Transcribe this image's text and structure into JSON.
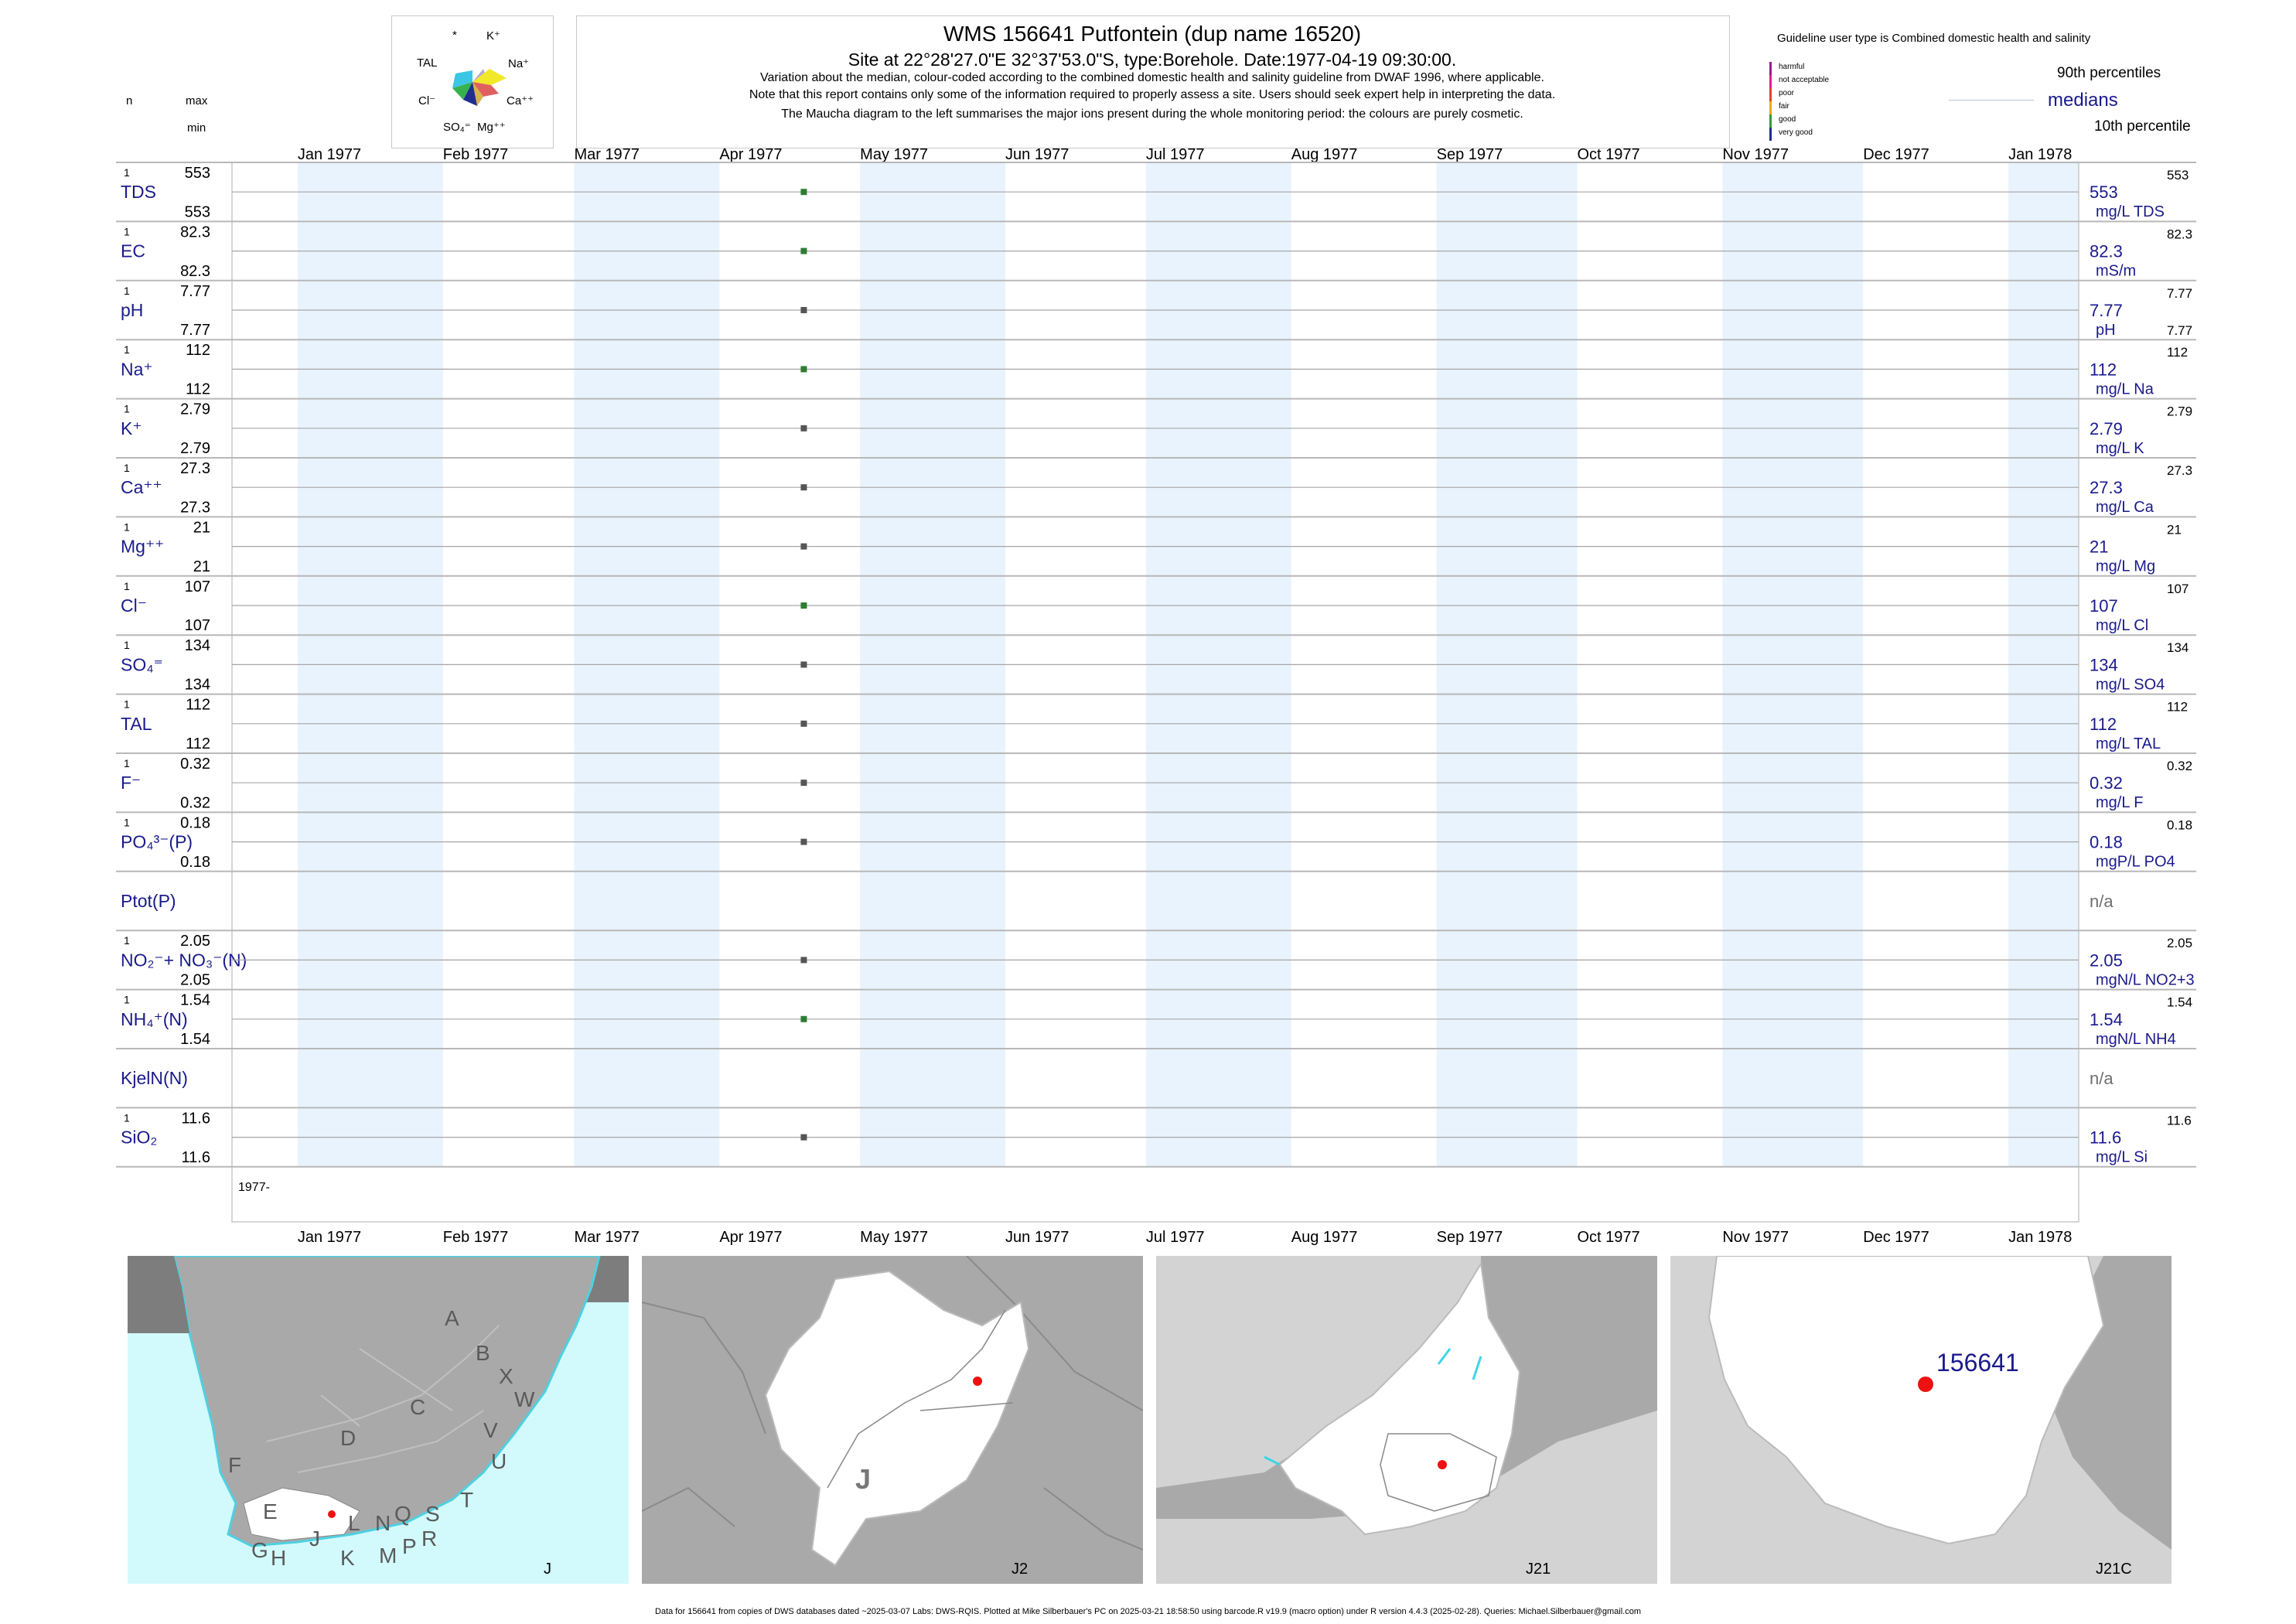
{
  "header": {
    "title": "WMS 156641  Putfontein (dup name 16520)",
    "site_line": "Site at 22°28'27.0\"E 32°37'53.0\"S, type:Borehole. Date:1977-04-19 09:30:00.",
    "note_1": "Variation about the median,  colour-coded according to the combined domestic health and salinity guideline from DWAF 1996, where applicable.",
    "note_2": "Note that this report contains only some of the information required to properly assess a site. Users should seek expert help in interpreting the data.",
    "note_3": "The Maucha diagram to the left summarises the major ions present during the whole monitoring period: the colours are purely cosmetic."
  },
  "maucha": {
    "labels": {
      "star": "*",
      "k": "K⁺",
      "tal": "TAL",
      "na": "Na⁺",
      "cl": "Cl⁻",
      "ca": "Ca⁺⁺",
      "so4": "SO₄⁼",
      "mg": "Mg⁺⁺"
    }
  },
  "left_header": {
    "n": "n",
    "max": "max",
    "min": "min"
  },
  "legend": {
    "guideline_title": "Guideline user type is Combined domestic health and salinity",
    "categories": [
      {
        "label": "harmful",
        "color": "#9b1d8a"
      },
      {
        "label": "not acceptable",
        "color": "#e0218a"
      },
      {
        "label": "poor",
        "color": "#e8402a"
      },
      {
        "label": "fair",
        "color": "#f2a900"
      },
      {
        "label": "good",
        "color": "#2e9e3a"
      },
      {
        "label": "very good",
        "color": "#1f2f8f"
      }
    ],
    "p90": "90th percentiles",
    "medians": "medians",
    "p10": "10th percentile"
  },
  "chart_data": {
    "type": "scatter",
    "x_axis": {
      "months": [
        "Jan 1977",
        "Feb 1977",
        "Mar 1977",
        "Apr 1977",
        "May 1977",
        "Jun 1977",
        "Jul 1977",
        "Aug 1977",
        "Sep 1977",
        "Oct 1977",
        "Nov 1977",
        "Dec 1977",
        "Jan 1978"
      ],
      "range": [
        "1976-12-18",
        "1978-01-16"
      ],
      "year_label": "1977-"
    },
    "sample_date": "1977-04-19",
    "series": [
      {
        "label": "TDS",
        "n": "1",
        "max": "553",
        "min": "553",
        "value": 553,
        "median": "553",
        "unit": "mg/L TDS",
        "p90": "553",
        "color": "#2e7d32"
      },
      {
        "label": "EC",
        "n": "1",
        "max": "82.3",
        "min": "82.3",
        "value": 82.3,
        "median": "82.3",
        "unit": "mS/m",
        "p90": "82.3",
        "color": "#2e7d32"
      },
      {
        "label": "pH",
        "n": "1",
        "max": "7.77",
        "min": "7.77",
        "value": 7.77,
        "median": "7.77",
        "unit": "pH",
        "p90": "7.77",
        "p10": "7.77",
        "color": "#555555"
      },
      {
        "label": "Na⁺",
        "n": "1",
        "max": "112",
        "min": "112",
        "value": 112,
        "median": "112",
        "unit": "mg/L Na",
        "p90": "112",
        "color": "#2e7d32"
      },
      {
        "label": "K⁺",
        "n": "1",
        "max": "2.79",
        "min": "2.79",
        "value": 2.79,
        "median": "2.79",
        "unit": "mg/L K",
        "p90": "2.79",
        "color": "#555555"
      },
      {
        "label": "Ca⁺⁺",
        "n": "1",
        "max": "27.3",
        "min": "27.3",
        "value": 27.3,
        "median": "27.3",
        "unit": "mg/L Ca",
        "p90": "27.3",
        "color": "#555555"
      },
      {
        "label": "Mg⁺⁺",
        "n": "1",
        "max": "21",
        "min": "21",
        "value": 21,
        "median": "21",
        "unit": "mg/L Mg",
        "p90": "21",
        "color": "#555555"
      },
      {
        "label": "Cl⁻",
        "n": "1",
        "max": "107",
        "min": "107",
        "value": 107,
        "median": "107",
        "unit": "mg/L Cl",
        "p90": "107",
        "color": "#2e7d32"
      },
      {
        "label": "SO₄⁼",
        "n": "1",
        "max": "134",
        "min": "134",
        "value": 134,
        "median": "134",
        "unit": "mg/L SO4",
        "p90": "134",
        "color": "#555555"
      },
      {
        "label": "TAL",
        "n": "1",
        "max": "112",
        "min": "112",
        "value": 112,
        "median": "112",
        "unit": "mg/L TAL",
        "p90": "112",
        "color": "#555555"
      },
      {
        "label": "F⁻",
        "n": "1",
        "max": "0.32",
        "min": "0.32",
        "value": 0.32,
        "median": "0.32",
        "unit": "mg/L F",
        "p90": "0.32",
        "color": "#555555"
      },
      {
        "label": "PO₄³⁻(P)",
        "n": "1",
        "max": "0.18",
        "min": "0.18",
        "value": 0.18,
        "median": "0.18",
        "unit": "mgP/L PO4",
        "p90": "0.18",
        "color": "#555555"
      },
      {
        "label": "Ptot(P)",
        "n": "",
        "max": "",
        "min": "",
        "value": null,
        "median": "n/a",
        "unit": "",
        "p90": "",
        "color": "#555555"
      },
      {
        "label": "NO₂⁻+ NO₃⁻(N)",
        "n": "1",
        "max": "2.05",
        "min": "2.05",
        "value": 2.05,
        "median": "2.05",
        "unit": "mgN/L NO2+3",
        "p90": "2.05",
        "color": "#555555"
      },
      {
        "label": "NH₄⁺(N)",
        "n": "1",
        "max": "1.54",
        "min": "1.54",
        "value": 1.54,
        "median": "1.54",
        "unit": "mgN/L NH4",
        "p90": "1.54",
        "color": "#2e7d32"
      },
      {
        "label": "KjelN(N)",
        "n": "",
        "max": "",
        "min": "",
        "value": null,
        "median": "n/a",
        "unit": "",
        "p90": "",
        "color": "#555555"
      },
      {
        "label": "SiO₂",
        "n": "1",
        "max": "11.6",
        "min": "11.6",
        "value": 11.6,
        "median": "11.6",
        "unit": "mg/L Si",
        "p90": "11.6",
        "color": "#555555"
      }
    ]
  },
  "maps": [
    {
      "caption": "J",
      "letters": [
        "A",
        "B",
        "X",
        "C",
        "W",
        "D",
        "V",
        "U",
        "F",
        "E",
        "T",
        "J",
        "L",
        "N",
        "Q",
        "S",
        "G",
        "H",
        "K",
        "M",
        "P",
        "R"
      ]
    },
    {
      "caption": "J2",
      "letters": [
        "J"
      ]
    },
    {
      "caption": "J21",
      "letters": []
    },
    {
      "caption": "J21C",
      "site_label": "156641"
    }
  ],
  "colors": {
    "sea": "#d2fafc",
    "land": "#a9a9a9",
    "catchment": "#ffffff",
    "site": "#ee1111",
    "band": "#e8f3fd",
    "label_blue": "#1a1a8c"
  },
  "footer": "Data for 156641 from copies of DWS databases dated ~2025-03-07 Labs: DWS-RQIS. Plotted at Mike Silberbauer's PC on 2025-03-21 18:58:50 using barcode.R v19.9 (macro option) under R version 4.4.3 (2025-02-28). Queries: Michael.Silberbauer@gmail.com"
}
